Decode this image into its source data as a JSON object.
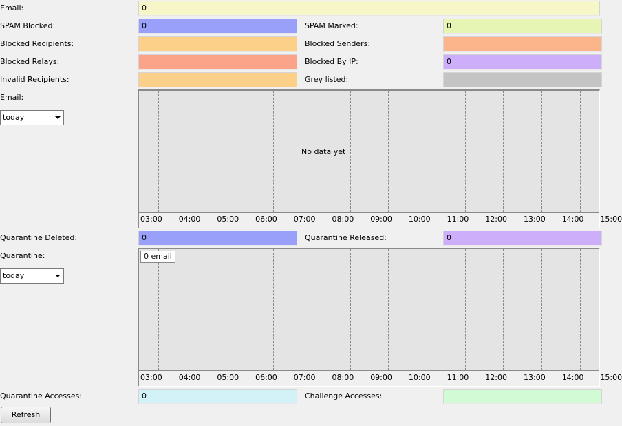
{
  "email": {
    "label": "Email:",
    "value": "0"
  },
  "spam_blocked": {
    "label": "SPAM Blocked:",
    "value": "0"
  },
  "spam_marked": {
    "label": "SPAM Marked:",
    "value": "0"
  },
  "blocked_recipients": {
    "label": "Blocked Recipients:",
    "value": ""
  },
  "blocked_senders": {
    "label": "Blocked Senders:",
    "value": ""
  },
  "blocked_relays": {
    "label": "Blocked Relays:",
    "value": ""
  },
  "blocked_by_ip": {
    "label": "Blocked By IP:",
    "value": "0"
  },
  "invalid_recipients": {
    "label": "Invalid Recipients:",
    "value": ""
  },
  "grey_listed": {
    "label": "Grey listed:",
    "value": ""
  },
  "email_chart": {
    "label": "Email:",
    "period": "today",
    "message": "No data yet",
    "ticks": [
      "03:00",
      "04:00",
      "05:00",
      "06:00",
      "07:00",
      "08:00",
      "09:00",
      "10:00",
      "11:00",
      "12:00",
      "13:00",
      "14:00",
      "15:00"
    ]
  },
  "quarantine_deleted": {
    "label": "Quarantine Deleted:",
    "value": "0"
  },
  "quarantine_released": {
    "label": "Quarantine Released:",
    "value": "0"
  },
  "quarantine_chart": {
    "label": "Quarantine:",
    "period": "today",
    "tag": "0 email",
    "ticks": [
      "03:00",
      "04:00",
      "05:00",
      "06:00",
      "07:00",
      "08:00",
      "09:00",
      "10:00",
      "11:00",
      "12:00",
      "13:00",
      "14:00",
      "15:00"
    ]
  },
  "quarantine_accesses": {
    "label": "Quarantine Accesses:",
    "value": "0"
  },
  "challenge_accesses": {
    "label": "Challenge Accesses:",
    "value": ""
  },
  "refresh_label": "Refresh",
  "colors": {
    "email": "#f6f6c8",
    "spam_blocked": "#98a0fa",
    "spam_marked": "#e6f5b4",
    "blocked_recipients": "#fdd08a",
    "blocked_senders": "#fcb48a",
    "blocked_relays": "#fca48a",
    "blocked_by_ip": "#cdaefa",
    "invalid_recipients": "#fdd08a",
    "grey_listed": "#c4c4c4",
    "quarantine_deleted": "#98a0fa",
    "quarantine_released": "#cdaefa",
    "quarantine_accesses": "#d2f2f8",
    "challenge_accesses": "#d2fad4"
  }
}
